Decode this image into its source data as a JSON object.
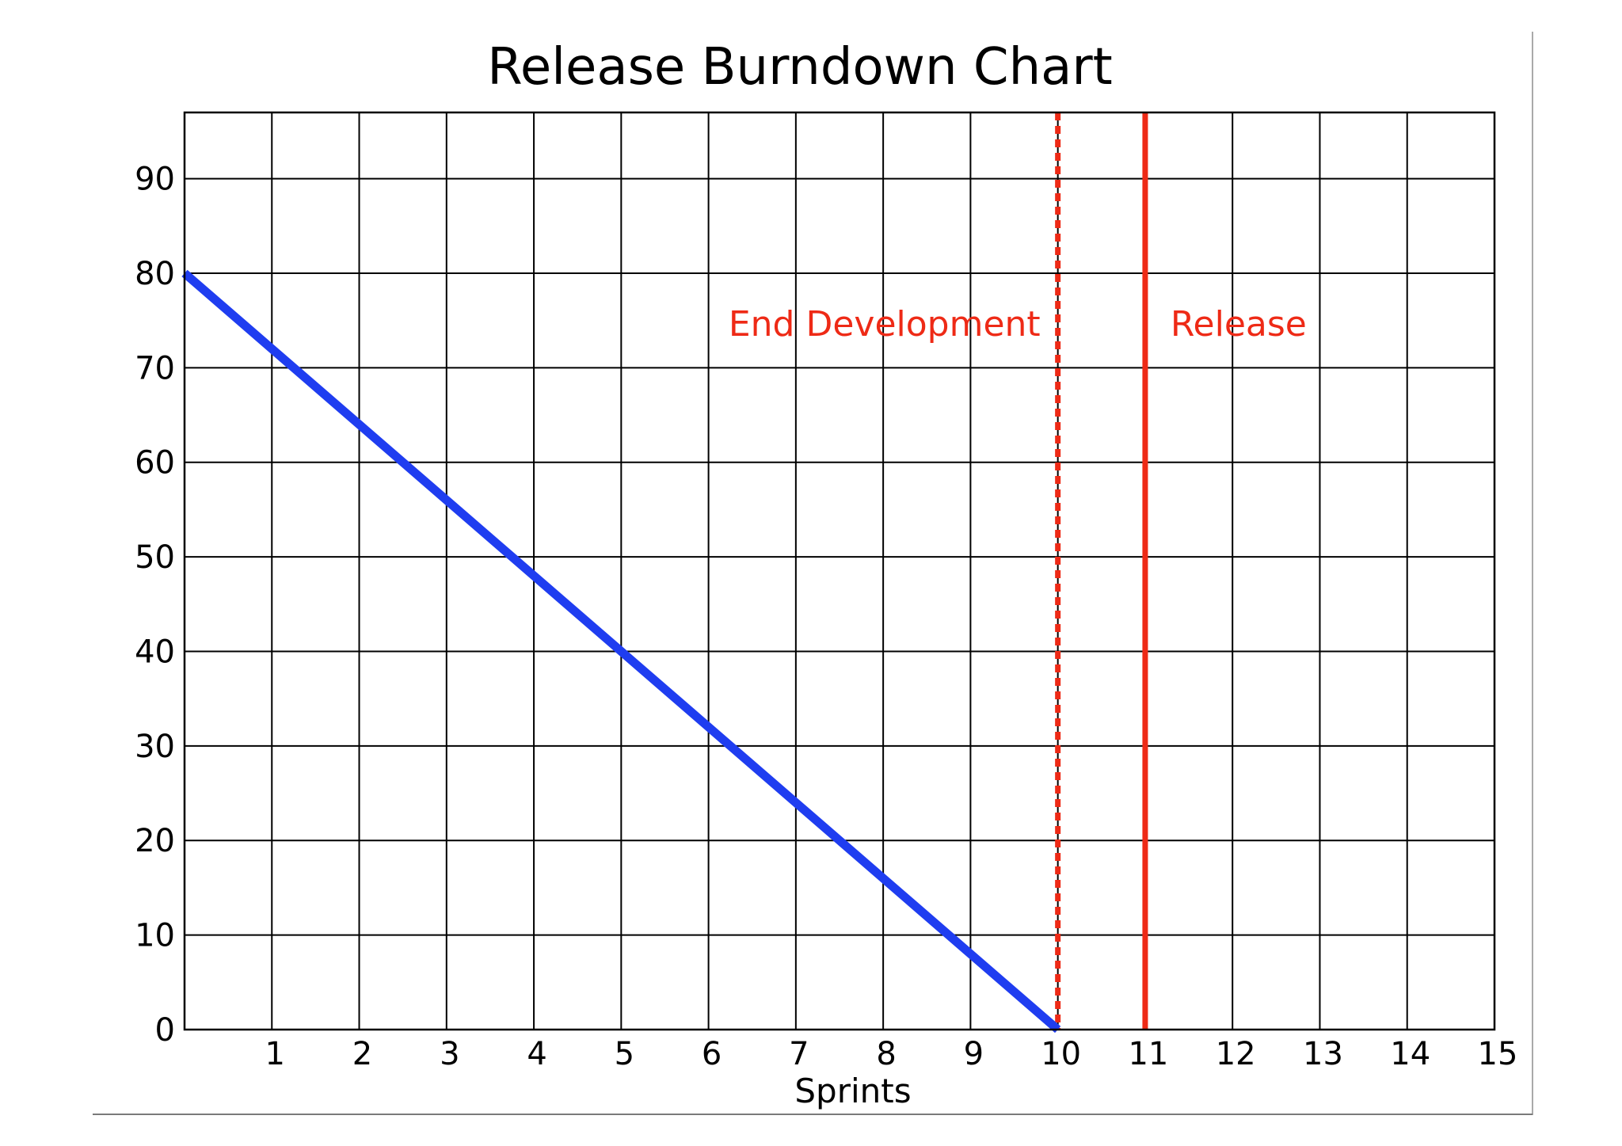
{
  "chart_data": {
    "type": "line",
    "title": "Release Burndown Chart",
    "xlabel": "Sprints",
    "ylabel": "",
    "xlim": [
      0,
      15
    ],
    "ylim": [
      0,
      97
    ],
    "x_ticks": [
      1,
      2,
      3,
      4,
      5,
      6,
      7,
      8,
      9,
      10,
      11,
      12,
      13,
      14,
      15
    ],
    "x_tick_labels": [
      "1",
      "2",
      "3",
      "4",
      "5",
      "6",
      "7",
      "8",
      "9",
      "10",
      "11",
      "12",
      "13",
      "14",
      "15"
    ],
    "y_ticks": [
      0,
      10,
      20,
      30,
      40,
      50,
      60,
      70,
      80,
      90
    ],
    "y_tick_labels": [
      "0",
      "10",
      "20",
      "30",
      "40",
      "50",
      "60",
      "70",
      "80",
      "90"
    ],
    "grid": true,
    "series": [
      {
        "x": [
          0,
          10
        ],
        "y": [
          80,
          0
        ],
        "color": "#1f3df0"
      }
    ],
    "markers": [
      {
        "x": 10,
        "label": "End Development",
        "style": "dashed",
        "color": "#ee2a16"
      },
      {
        "x": 11,
        "label": "Release",
        "style": "solid",
        "color": "#ee2a16"
      }
    ]
  }
}
